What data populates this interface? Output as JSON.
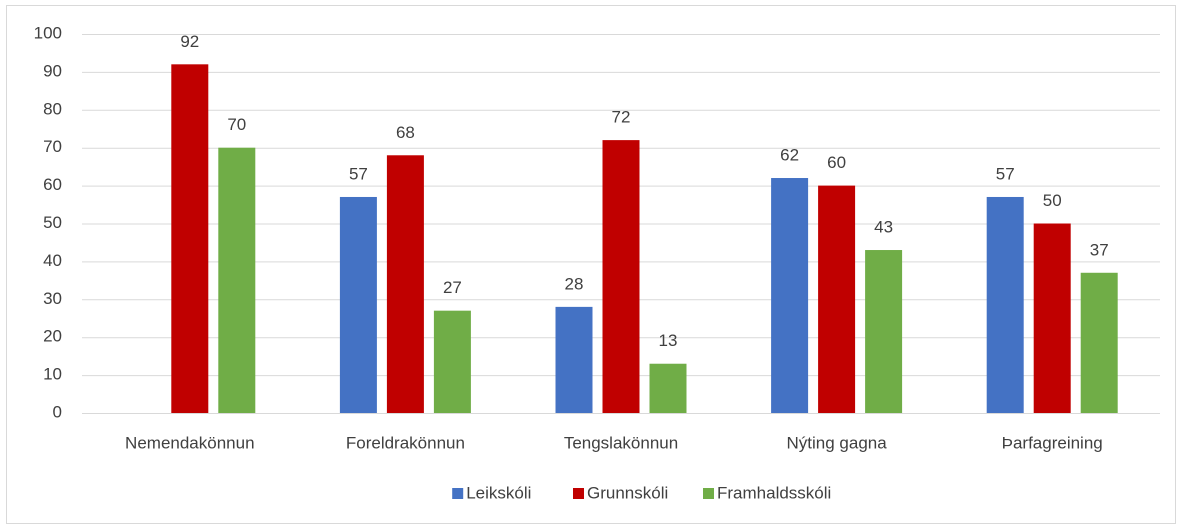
{
  "chart_data": {
    "type": "bar",
    "categories": [
      "Nemendakönnun",
      "Foreldrakönnun",
      "Tengslakönnun",
      "Nýting gagna",
      "Þarfagreining"
    ],
    "series": [
      {
        "name": "Leikskóli",
        "color": "#4472c4",
        "values": [
          null,
          57,
          28,
          62,
          57
        ]
      },
      {
        "name": "Grunnskóli",
        "color": "#c00000",
        "values": [
          92,
          68,
          72,
          60,
          50
        ]
      },
      {
        "name": "Framhaldsskóli",
        "color": "#70ad47",
        "values": [
          70,
          27,
          13,
          43,
          37
        ]
      }
    ],
    "ylim": [
      0,
      100
    ],
    "yticks": [
      0,
      10,
      20,
      30,
      40,
      50,
      60,
      70,
      80,
      90,
      100
    ],
    "grid": true,
    "legend": "bottom"
  }
}
